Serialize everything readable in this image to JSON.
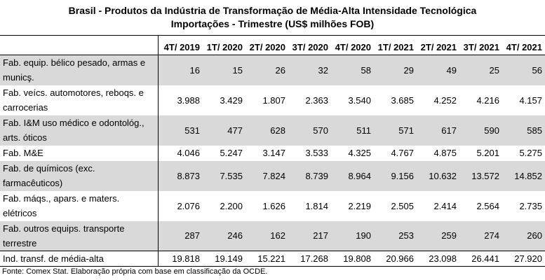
{
  "title": {
    "line1": "Brasil - Produtos da Indústria de Transformação de Média-Alta Intensidade Tecnológica",
    "line2": "Importações - Trimestre (US$ milhões FOB)"
  },
  "table": {
    "columns": [
      "4T/ 2019",
      "1T/ 2020",
      "2T/ 2020",
      "3T/ 2020",
      "4T/ 2020",
      "1T/ 2021",
      "2T/ 2021",
      "3T/ 2021",
      "4T/ 2021"
    ],
    "rows": [
      {
        "label": "Fab. equip. bélico pesado, armas e municş.",
        "values": [
          "16",
          "15",
          "26",
          "32",
          "58",
          "29",
          "49",
          "25",
          "56"
        ]
      },
      {
        "label": "Fab. veícs. automotores, reboqs. e carrocerias",
        "values": [
          "3.988",
          "3.429",
          "1.807",
          "2.363",
          "3.540",
          "3.685",
          "4.252",
          "4.216",
          "4.157"
        ]
      },
      {
        "label": "Fab. I&M uso médico e odontológ., arts. óticos",
        "values": [
          "531",
          "477",
          "628",
          "570",
          "511",
          "571",
          "617",
          "590",
          "585"
        ]
      },
      {
        "label": "Fab. M&E",
        "values": [
          "4.046",
          "5.247",
          "3.147",
          "3.533",
          "4.325",
          "4.767",
          "4.875",
          "5.201",
          "5.275"
        ]
      },
      {
        "label": "Fab. de químicos (exc. farmacêuticos)",
        "values": [
          "8.873",
          "7.535",
          "7.824",
          "8.739",
          "8.964",
          "9.156",
          "10.632",
          "13.572",
          "14.852"
        ]
      },
      {
        "label": "Fab. máqs., apars. e maters. elétricos",
        "values": [
          "2.076",
          "2.200",
          "1.626",
          "1.814",
          "2.219",
          "2.505",
          "2.414",
          "2.564",
          "2.735"
        ]
      },
      {
        "label": "Fab. outros equips. transporte terrestre",
        "values": [
          "287",
          "246",
          "162",
          "217",
          "190",
          "253",
          "259",
          "274",
          "260"
        ]
      }
    ],
    "total": {
      "label": "Ind. transf. de média-alta",
      "values": [
        "19.818",
        "19.149",
        "15.221",
        "17.268",
        "19.808",
        "20.966",
        "23.098",
        "26.441",
        "27.920"
      ]
    }
  },
  "source": "Fonte: Comex Stat. Elaboração própria com base em classificação da OCDE."
}
